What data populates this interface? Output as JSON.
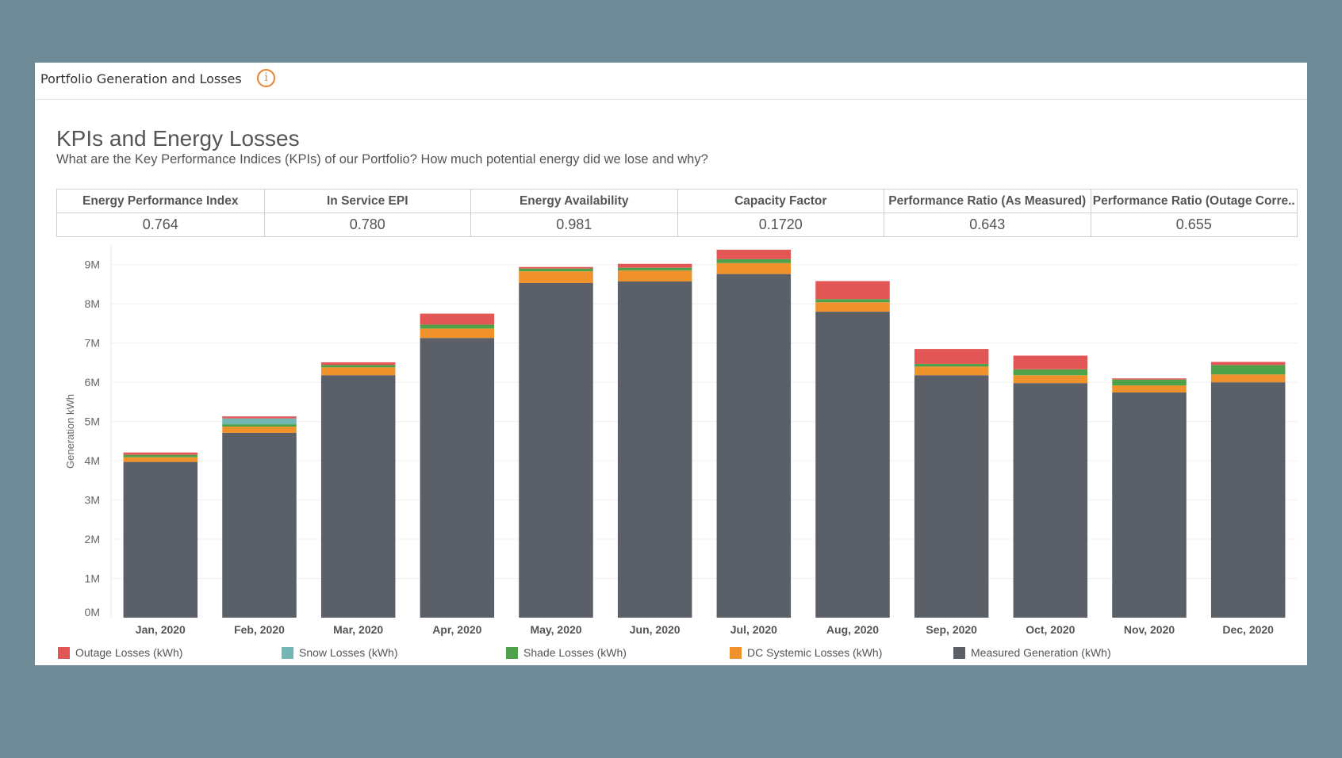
{
  "panel": {
    "title": "Portfolio Generation and Losses",
    "info_glyph": "i"
  },
  "kpi": {
    "title": "KPIs and Energy Losses",
    "subtitle": "What are the Key Performance Indices (KPIs) of our Portfolio?  How much potential energy did we lose and why?",
    "columns": [
      {
        "label": "Energy Performance Index",
        "value": "0.764"
      },
      {
        "label": "In Service EPI",
        "value": "0.780"
      },
      {
        "label": "Energy Availability",
        "value": "0.981"
      },
      {
        "label": "Capacity Factor",
        "value": "0.1720"
      },
      {
        "label": "Performance Ratio (As Measured)",
        "value": "0.643"
      },
      {
        "label": "Performance Ratio (Outage Corre..",
        "value": "0.655"
      }
    ]
  },
  "chart_data": {
    "type": "bar",
    "stacked": true,
    "title": "",
    "xlabel": "",
    "ylabel": "Generation kWh",
    "ylim": [
      0,
      9500000
    ],
    "yticks": [
      0,
      1000000,
      2000000,
      3000000,
      4000000,
      5000000,
      6000000,
      7000000,
      8000000,
      9000000
    ],
    "ytick_labels": [
      "0M",
      "1M",
      "2M",
      "3M",
      "4M",
      "5M",
      "6M",
      "7M",
      "8M",
      "9M"
    ],
    "grid": true,
    "legend_position": "bottom",
    "categories": [
      "Jan, 2020",
      "Feb, 2020",
      "Mar, 2020",
      "Apr, 2020",
      "May, 2020",
      "Jun, 2020",
      "Jul, 2020",
      "Aug, 2020",
      "Sep, 2020",
      "Oct, 2020",
      "Nov, 2020",
      "Dec, 2020"
    ],
    "series": [
      {
        "name": "Measured Generation (kWh)",
        "color": "#5b5f68",
        "values": [
          3970000,
          4710000,
          6180000,
          7130000,
          8530000,
          8570000,
          8760000,
          7800000,
          6180000,
          5980000,
          5740000,
          6000000
        ]
      },
      {
        "name": "DC Systemic Losses (kWh)",
        "color": "#f0922b",
        "values": [
          120000,
          160000,
          200000,
          240000,
          300000,
          280000,
          280000,
          240000,
          220000,
          200000,
          180000,
          200000
        ]
      },
      {
        "name": "Shade Losses (kWh)",
        "color": "#4ea24a",
        "values": [
          60000,
          60000,
          60000,
          100000,
          70000,
          70000,
          100000,
          80000,
          70000,
          150000,
          150000,
          240000
        ]
      },
      {
        "name": "Snow Losses (kWh)",
        "color": "#72b7b4",
        "values": [
          0,
          150000,
          0,
          0,
          0,
          0,
          0,
          0,
          0,
          0,
          0,
          0
        ]
      },
      {
        "name": "Outage Losses (kWh)",
        "color": "#e35656",
        "values": [
          60000,
          50000,
          70000,
          280000,
          40000,
          100000,
          240000,
          460000,
          380000,
          350000,
          30000,
          80000
        ]
      }
    ],
    "legend_order": [
      "Outage Losses (kWh)",
      "Snow Losses (kWh)",
      "Shade Losses (kWh)",
      "DC Systemic Losses (kWh)",
      "Measured Generation (kWh)"
    ]
  }
}
